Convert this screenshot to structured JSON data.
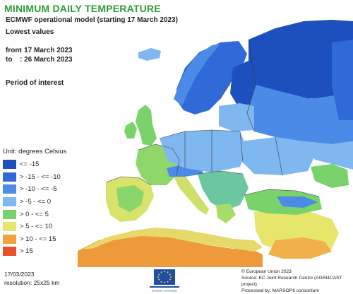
{
  "header": {
    "title": "MINIMUM DAILY TEMPERATURE",
    "subtitle": "ECMWF operational model (starting 17 March 2023)",
    "lowest_values": "Lowest values",
    "from_label": "from",
    "from_value": ": 17 March 2023",
    "to_label": "to",
    "to_value": ": 26 March 2023",
    "period": "Period of interest"
  },
  "legend": {
    "unit": "Unit: degrees Celsius",
    "items": [
      {
        "label": "<= -15",
        "color": "#1e4fbf"
      },
      {
        "label": "> -15 - <= -10",
        "color": "#3069d8"
      },
      {
        "label": "> -10 - <= -5",
        "color": "#4b8ae6"
      },
      {
        "label": "> -5 - <= 0",
        "color": "#7fb7f0"
      },
      {
        "label": "> 0 - <= 5",
        "color": "#79d26a"
      },
      {
        "label": "> 5 - <= 10",
        "color": "#e6e66a"
      },
      {
        "label": "> 10 - <= 15",
        "color": "#f2a23a"
      },
      {
        "label": "> 15",
        "color": "#e8522a"
      }
    ]
  },
  "footer": {
    "date": "17/03/2023",
    "resolution": "resolution: 25x25 km",
    "copyright": "© European Union 2023",
    "source": "Source: EC Joint Research Centre (AGRI4CAST project)",
    "processed": "Processed by: MARSOP6 consortium",
    "logo_text": "European Commission"
  },
  "map_colors": {
    "sea": "#ffffff",
    "border": "#3a3a3a"
  }
}
